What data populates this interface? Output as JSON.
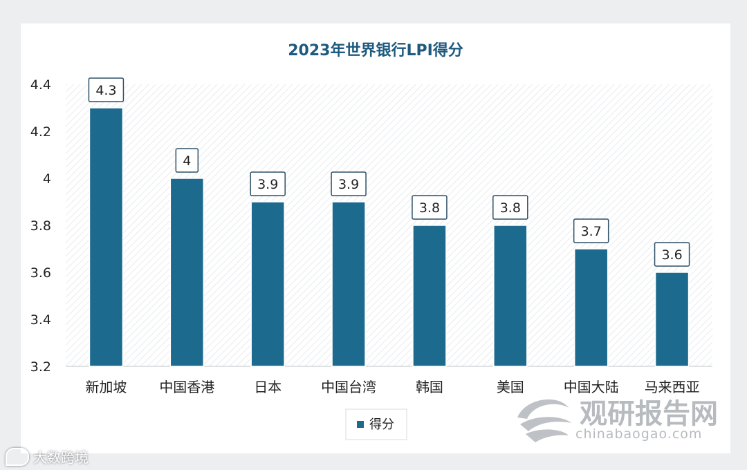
{
  "chart_data": {
    "type": "bar",
    "title": "2023年世界银行LPI得分",
    "categories": [
      "新加坡",
      "中国香港",
      "日本",
      "中国台湾",
      "韩国",
      "美国",
      "中国大陆",
      "马来西亚"
    ],
    "series": [
      {
        "name": "得分",
        "values": [
          4.3,
          4,
          3.9,
          3.9,
          3.8,
          3.8,
          3.7,
          3.6
        ]
      }
    ],
    "data_labels": [
      "4.3",
      "4",
      "3.9",
      "3.9",
      "3.8",
      "3.8",
      "3.7",
      "3.6"
    ],
    "ylim": [
      3.2,
      4.4
    ],
    "yticks": [
      3.2,
      3.4,
      3.6,
      3.8,
      4,
      4.2,
      4.4
    ],
    "ytick_labels": [
      "3.2",
      "3.4",
      "3.6",
      "3.8",
      "4",
      "4.2",
      "4.4"
    ],
    "grid": false,
    "plot_background": "hatched",
    "legend_position": "bottom",
    "colors": {
      "bar": "#1d6a8f",
      "title": "#1d5a7e",
      "text": "#222222"
    }
  },
  "watermark": {
    "brand": "观研报告网",
    "site": "chinabaogao.com",
    "icon": "swirl-logo-icon"
  },
  "footer_tag": {
    "label": "大数跨境",
    "icon": "chat-bubble-icon"
  }
}
